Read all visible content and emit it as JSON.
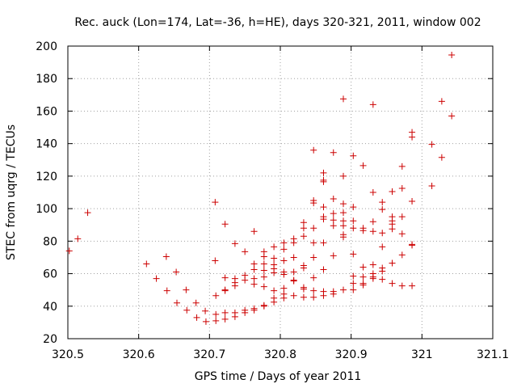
{
  "chart_data": {
    "type": "scatter",
    "title": "Rec. auck (Lon=174, Lat=-36, h=HE), days 320-321, 2011, window 002",
    "xlabel": "GPS time / Days of year 2011",
    "ylabel": "STEC from uqrg / TECUs",
    "xlim": [
      320.5,
      321.1
    ],
    "ylim": [
      20,
      200
    ],
    "xticks": [
      320.5,
      320.6,
      320.7,
      320.8,
      320.9,
      321,
      321.1
    ],
    "xtick_labels": [
      "320.5",
      "320.6",
      "320.7",
      "320.8",
      "320.9",
      "321",
      "321.1"
    ],
    "yticks": [
      20,
      40,
      60,
      80,
      100,
      120,
      140,
      160,
      180,
      200
    ],
    "ytick_labels": [
      "20",
      "40",
      "60",
      "80",
      "100",
      "120",
      "140",
      "160",
      "180",
      "200"
    ],
    "grid": true,
    "marker": "plus",
    "marker_color": "#cc0000",
    "points": [
      [
        320.502,
        74
      ],
      [
        320.514,
        81.5
      ],
      [
        320.528,
        97.5
      ],
      [
        320.611,
        66
      ],
      [
        320.625,
        57
      ],
      [
        320.639,
        70.5
      ],
      [
        320.64,
        49.5
      ],
      [
        320.653,
        61
      ],
      [
        320.654,
        42
      ],
      [
        320.667,
        50
      ],
      [
        320.668,
        37.5
      ],
      [
        320.681,
        42
      ],
      [
        320.682,
        33
      ],
      [
        320.694,
        37
      ],
      [
        320.695,
        30.5
      ],
      [
        320.708,
        104
      ],
      [
        320.708,
        68
      ],
      [
        320.709,
        46.5
      ],
      [
        320.709,
        35
      ],
      [
        320.709,
        31
      ],
      [
        320.722,
        90.5
      ],
      [
        320.722,
        57.5
      ],
      [
        320.722,
        50
      ],
      [
        320.722,
        49.5
      ],
      [
        320.722,
        36
      ],
      [
        320.722,
        32
      ],
      [
        320.736,
        78.5
      ],
      [
        320.736,
        57
      ],
      [
        320.736,
        54.5
      ],
      [
        320.736,
        52.5
      ],
      [
        320.736,
        36
      ],
      [
        320.736,
        33.5
      ],
      [
        320.75,
        73.5
      ],
      [
        320.75,
        59
      ],
      [
        320.75,
        56
      ],
      [
        320.75,
        37.5
      ],
      [
        320.75,
        36
      ],
      [
        320.763,
        86
      ],
      [
        320.763,
        66
      ],
      [
        320.763,
        62.5
      ],
      [
        320.763,
        57
      ],
      [
        320.763,
        53.5
      ],
      [
        320.763,
        38.5
      ],
      [
        320.763,
        37.5
      ],
      [
        320.777,
        73.5
      ],
      [
        320.777,
        70.5
      ],
      [
        320.777,
        66
      ],
      [
        320.777,
        62
      ],
      [
        320.777,
        58
      ],
      [
        320.777,
        52
      ],
      [
        320.777,
        40.5
      ],
      [
        320.777,
        40
      ],
      [
        320.791,
        76.5
      ],
      [
        320.791,
        69.5
      ],
      [
        320.791,
        65.5
      ],
      [
        320.791,
        63
      ],
      [
        320.791,
        60.5
      ],
      [
        320.791,
        49.5
      ],
      [
        320.791,
        45
      ],
      [
        320.791,
        42.5
      ],
      [
        320.805,
        79
      ],
      [
        320.805,
        75
      ],
      [
        320.805,
        68
      ],
      [
        320.805,
        61
      ],
      [
        320.805,
        59.5
      ],
      [
        320.805,
        51
      ],
      [
        320.805,
        47.5
      ],
      [
        320.805,
        45
      ],
      [
        320.819,
        81.5
      ],
      [
        320.819,
        79
      ],
      [
        320.819,
        70
      ],
      [
        320.819,
        61
      ],
      [
        320.819,
        56
      ],
      [
        320.819,
        55.5
      ],
      [
        320.819,
        46.5
      ],
      [
        320.833,
        91.5
      ],
      [
        320.833,
        88
      ],
      [
        320.833,
        83
      ],
      [
        320.833,
        65
      ],
      [
        320.833,
        63.5
      ],
      [
        320.833,
        51.5
      ],
      [
        320.833,
        50.5
      ],
      [
        320.833,
        45.5
      ],
      [
        320.847,
        136
      ],
      [
        320.847,
        105
      ],
      [
        320.847,
        103.5
      ],
      [
        320.847,
        88
      ],
      [
        320.847,
        79
      ],
      [
        320.847,
        70
      ],
      [
        320.847,
        57.5
      ],
      [
        320.847,
        49.5
      ],
      [
        320.847,
        45.5
      ],
      [
        320.861,
        122
      ],
      [
        320.861,
        117.5
      ],
      [
        320.861,
        116.5
      ],
      [
        320.861,
        101
      ],
      [
        320.861,
        95
      ],
      [
        320.861,
        93.5
      ],
      [
        320.861,
        79
      ],
      [
        320.861,
        62.5
      ],
      [
        320.861,
        49
      ],
      [
        320.861,
        46.5
      ],
      [
        320.875,
        134.5
      ],
      [
        320.875,
        106
      ],
      [
        320.875,
        97
      ],
      [
        320.875,
        93
      ],
      [
        320.875,
        89.5
      ],
      [
        320.875,
        71
      ],
      [
        320.875,
        49
      ],
      [
        320.875,
        47.5
      ],
      [
        320.889,
        167.5
      ],
      [
        320.889,
        120
      ],
      [
        320.889,
        103
      ],
      [
        320.889,
        97.5
      ],
      [
        320.889,
        92.5
      ],
      [
        320.889,
        89.5
      ],
      [
        320.889,
        84
      ],
      [
        320.889,
        82.5
      ],
      [
        320.889,
        50
      ],
      [
        320.903,
        132.5
      ],
      [
        320.903,
        101
      ],
      [
        320.903,
        92.5
      ],
      [
        320.903,
        88
      ],
      [
        320.903,
        72
      ],
      [
        320.903,
        58.5
      ],
      [
        320.903,
        54
      ],
      [
        320.903,
        50
      ],
      [
        320.917,
        126.5
      ],
      [
        320.917,
        88
      ],
      [
        320.917,
        86.5
      ],
      [
        320.917,
        64
      ],
      [
        320.917,
        58
      ],
      [
        320.917,
        54
      ],
      [
        320.917,
        53
      ],
      [
        320.931,
        164
      ],
      [
        320.931,
        110
      ],
      [
        320.931,
        92
      ],
      [
        320.931,
        86
      ],
      [
        320.931,
        65.5
      ],
      [
        320.931,
        60
      ],
      [
        320.931,
        58
      ],
      [
        320.931,
        57
      ],
      [
        320.944,
        104
      ],
      [
        320.944,
        99.5
      ],
      [
        320.944,
        85
      ],
      [
        320.944,
        76.5
      ],
      [
        320.944,
        63.5
      ],
      [
        320.944,
        61.5
      ],
      [
        320.944,
        56.5
      ],
      [
        320.958,
        110.5
      ],
      [
        320.958,
        95
      ],
      [
        320.958,
        92.5
      ],
      [
        320.958,
        90.5
      ],
      [
        320.958,
        87.5
      ],
      [
        320.958,
        66.5
      ],
      [
        320.958,
        54
      ],
      [
        320.972,
        126
      ],
      [
        320.972,
        112.5
      ],
      [
        320.972,
        95
      ],
      [
        320.972,
        84.5
      ],
      [
        320.972,
        71.5
      ],
      [
        320.972,
        52.5
      ],
      [
        320.986,
        147
      ],
      [
        320.986,
        144
      ],
      [
        320.986,
        104.5
      ],
      [
        320.986,
        78
      ],
      [
        320.986,
        77.5
      ],
      [
        320.986,
        52.5
      ],
      [
        321.014,
        139.5
      ],
      [
        321.014,
        114
      ],
      [
        321.028,
        166
      ],
      [
        321.028,
        131.5
      ],
      [
        321.042,
        194.5
      ],
      [
        321.042,
        157
      ]
    ]
  }
}
